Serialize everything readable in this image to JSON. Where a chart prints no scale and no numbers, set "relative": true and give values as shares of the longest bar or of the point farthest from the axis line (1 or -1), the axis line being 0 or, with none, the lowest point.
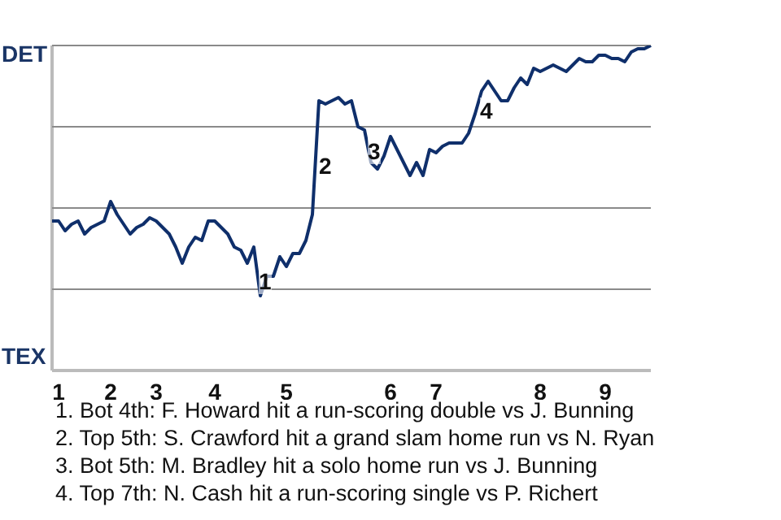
{
  "chart_data": {
    "type": "line",
    "relative": true,
    "categories": [
      null,
      "1",
      null,
      null,
      null,
      null,
      null,
      null,
      null,
      "2",
      null,
      null,
      null,
      null,
      null,
      null,
      "3",
      null,
      null,
      null,
      null,
      null,
      null,
      null,
      null,
      "4",
      null,
      null,
      null,
      null,
      null,
      null,
      null,
      null,
      null,
      null,
      "5",
      null,
      null,
      null,
      null,
      null,
      null,
      null,
      null,
      null,
      null,
      null,
      null,
      null,
      null,
      null,
      "6",
      null,
      null,
      null,
      null,
      null,
      null,
      "7",
      null,
      null,
      null,
      null,
      null,
      null,
      null,
      null,
      null,
      null,
      null,
      null,
      null,
      null,
      null,
      "8",
      null,
      null,
      null,
      null,
      null,
      null,
      null,
      null,
      null,
      "9",
      null,
      null,
      null,
      null,
      null,
      null,
      null
    ],
    "series": [
      {
        "color": "#0f2f6b",
        "values": [
          0.46,
          0.46,
          0.43,
          0.45,
          0.46,
          0.42,
          0.44,
          0.45,
          0.46,
          0.52,
          0.48,
          0.45,
          0.42,
          0.44,
          0.45,
          0.47,
          0.46,
          0.44,
          0.42,
          0.38,
          0.33,
          0.38,
          0.41,
          0.4,
          0.46,
          0.46,
          0.44,
          0.42,
          0.38,
          0.37,
          0.33,
          0.38,
          0.23,
          0.29,
          0.29,
          0.35,
          0.32,
          0.36,
          0.36,
          0.4,
          0.48,
          0.83,
          0.82,
          0.83,
          0.84,
          0.82,
          0.83,
          0.75,
          0.74,
          0.64,
          0.62,
          0.66,
          0.72,
          0.68,
          0.64,
          0.6,
          0.64,
          0.6,
          0.68,
          0.67,
          0.69,
          0.7,
          0.7,
          0.7,
          0.73,
          0.79,
          0.86,
          0.89,
          0.86,
          0.83,
          0.83,
          0.87,
          0.9,
          0.88,
          0.93,
          0.92,
          0.93,
          0.94,
          0.93,
          0.92,
          0.94,
          0.96,
          0.95,
          0.95,
          0.97,
          0.97,
          0.96,
          0.96,
          0.95,
          0.98,
          0.99,
          0.99,
          1.0
        ]
      }
    ],
    "grid": false,
    "legend": false,
    "marker": "none",
    "line_style": "solid",
    "ref_lines": [
      {
        "axis": "y",
        "value": 0.25,
        "color": "#8a8a8a"
      },
      {
        "axis": "y",
        "value": 0.5,
        "color": "#8a8a8a"
      },
      {
        "axis": "y",
        "value": 0.75,
        "color": "#8a8a8a"
      },
      {
        "axis": "y",
        "value": 1,
        "color": "#8a8a8a"
      }
    ],
    "annotations": [
      "DET",
      "TEX",
      "1",
      "2",
      "3",
      "4",
      "1. Bot 4th: F. Howard hit a run-scoring double vs J. Bunning",
      "2. Top 5th: S. Crawford hit a grand slam home run vs N. Ryan",
      "3. Bot 5th: M. Bradley hit a solo home run vs J. Bunning",
      "4. Top 7th: N. Cash hit a run-scoring single vs P. Richert"
    ]
  }
}
